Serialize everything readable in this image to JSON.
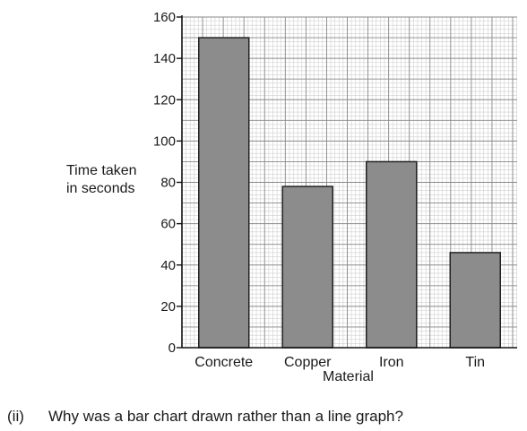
{
  "chart_data": {
    "type": "bar",
    "categories": [
      "Concrete",
      "Copper",
      "Iron",
      "Tin"
    ],
    "values": [
      150,
      78,
      90,
      46
    ],
    "xlabel": "Material",
    "ylabel": "Time taken in seconds",
    "ylabel_lines": [
      "Time taken",
      "in seconds"
    ],
    "ylim": [
      0,
      160
    ],
    "yticks": [
      "0",
      "20",
      "40",
      "60",
      "80",
      "100",
      "120",
      "140",
      "160"
    ],
    "grid": true,
    "bar_color": "#8c8c8c"
  },
  "question": {
    "number": "(ii)",
    "text": "Why was a bar chart drawn rather than a line graph?"
  }
}
